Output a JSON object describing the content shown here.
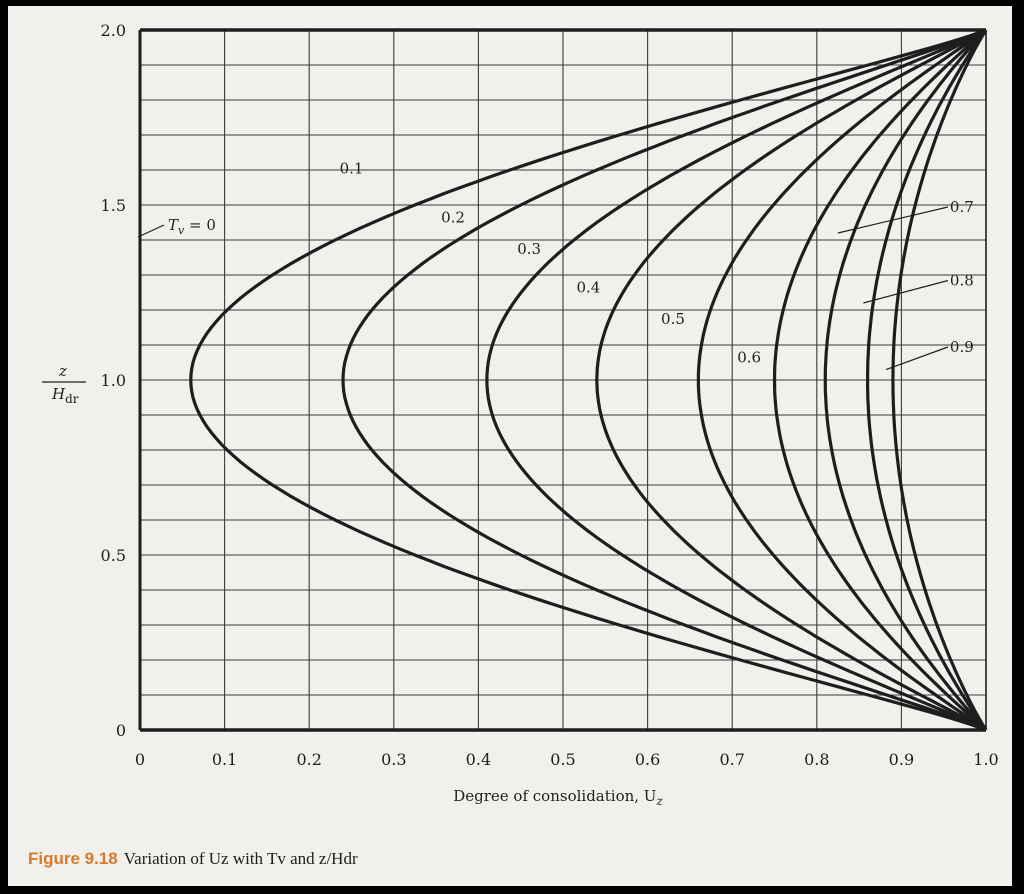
{
  "chart_data": {
    "type": "line",
    "title": "",
    "xlabel": "Degree of consolidation, Uz",
    "ylabel": "z/Hdr",
    "xlim": [
      0,
      1.0
    ],
    "ylim": [
      0,
      2.0
    ],
    "x_ticks": [
      "0",
      "0.1",
      "0.2",
      "0.3",
      "0.4",
      "0.5",
      "0.6",
      "0.7",
      "0.8",
      "0.9",
      "1.0"
    ],
    "y_ticks": [
      "0",
      "0.5",
      "1.0",
      "1.5",
      "2.0"
    ],
    "grid": true,
    "series": [
      {
        "name": "0.1",
        "u_at_mid": 0.06
      },
      {
        "name": "0.2",
        "u_at_mid": 0.24
      },
      {
        "name": "0.3",
        "u_at_mid": 0.41
      },
      {
        "name": "0.4",
        "u_at_mid": 0.54
      },
      {
        "name": "0.5",
        "u_at_mid": 0.66
      },
      {
        "name": "0.6",
        "u_at_mid": 0.75
      },
      {
        "name": "0.7",
        "u_at_mid": 0.81
      },
      {
        "name": "0.8",
        "u_at_mid": 0.86
      },
      {
        "name": "0.9",
        "u_at_mid": 0.89
      }
    ],
    "annotations": [
      {
        "text": "Tv = 0",
        "target": "left axis, curve Tv = 0 (Uz = 0)"
      }
    ]
  },
  "labels": {
    "tv0": "T",
    "tv0_sub": "v",
    "tv0_eq": " = 0",
    "ylabel_num": "z",
    "ylabel_den": "H",
    "ylabel_den_sub": "dr",
    "xlabel": "Degree of consolidation, U",
    "xlabel_sub": "z"
  },
  "caption": {
    "figure": "Figure 9.18",
    "text": "Variation of Uz with Tv and z/Hdr"
  },
  "colors": {
    "paper": "#f1f0ec",
    "ink": "#1e1e1e",
    "grid": "#3a3a3a",
    "figure_label": "#d87a2a"
  }
}
